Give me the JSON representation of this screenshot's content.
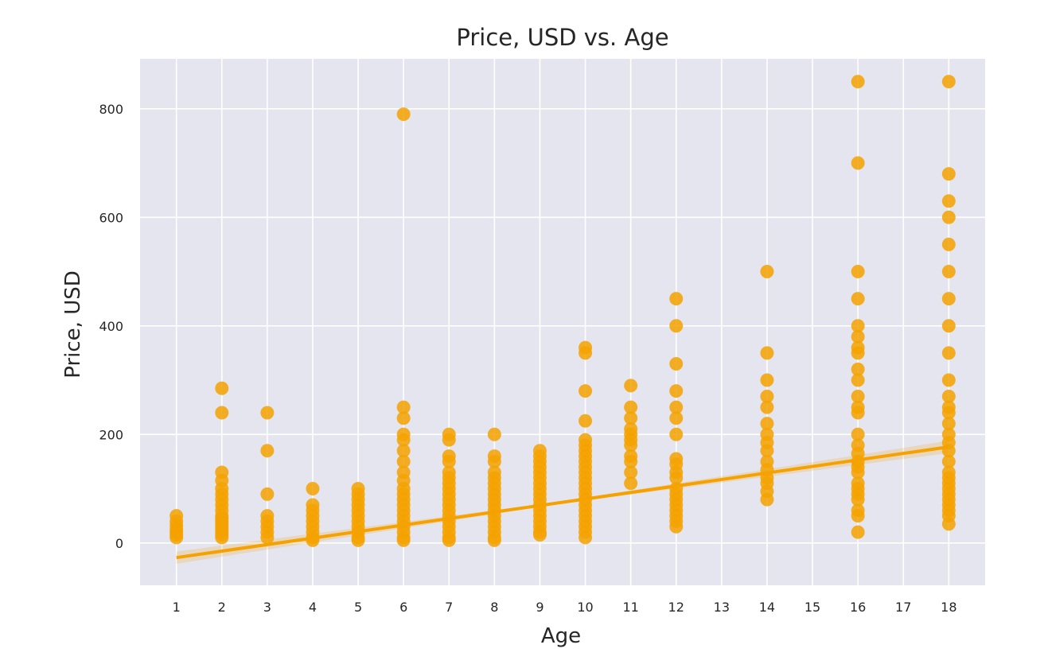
{
  "chart_data": {
    "type": "scatter",
    "title": "Price, USD vs. Age",
    "xlabel": "Age",
    "ylabel": "Price, USD",
    "x_ticks": [
      1,
      2,
      3,
      4,
      5,
      6,
      7,
      8,
      9,
      10,
      11,
      12,
      13,
      14,
      15,
      16,
      17,
      18
    ],
    "y_ticks": [
      0,
      200,
      400,
      600,
      800
    ],
    "xlim": [
      0.2,
      18.8
    ],
    "ylim": [
      -78,
      892
    ],
    "grid": true,
    "colors": {
      "background": "#e5e5ef",
      "grid": "#ffffff",
      "points": "#f5a200",
      "trend": "#f5a200"
    },
    "trend_line": {
      "x": [
        1,
        18
      ],
      "y": [
        -27,
        177
      ]
    },
    "points": [
      [
        1,
        50
      ],
      [
        1,
        40
      ],
      [
        1,
        32
      ],
      [
        1,
        25
      ],
      [
        1,
        20
      ],
      [
        1,
        15
      ],
      [
        1,
        10
      ],
      [
        2,
        285
      ],
      [
        2,
        240
      ],
      [
        2,
        130
      ],
      [
        2,
        115
      ],
      [
        2,
        100
      ],
      [
        2,
        90
      ],
      [
        2,
        80
      ],
      [
        2,
        70
      ],
      [
        2,
        60
      ],
      [
        2,
        50
      ],
      [
        2,
        45
      ],
      [
        2,
        40
      ],
      [
        2,
        35
      ],
      [
        2,
        30
      ],
      [
        2,
        25
      ],
      [
        2,
        20
      ],
      [
        2,
        15
      ],
      [
        2,
        10
      ],
      [
        3,
        240
      ],
      [
        3,
        170
      ],
      [
        3,
        90
      ],
      [
        3,
        50
      ],
      [
        3,
        40
      ],
      [
        3,
        30
      ],
      [
        3,
        20
      ],
      [
        3,
        10
      ],
      [
        4,
        100
      ],
      [
        4,
        70
      ],
      [
        4,
        60
      ],
      [
        4,
        50
      ],
      [
        4,
        40
      ],
      [
        4,
        30
      ],
      [
        4,
        20
      ],
      [
        4,
        10
      ],
      [
        4,
        5
      ],
      [
        5,
        100
      ],
      [
        5,
        90
      ],
      [
        5,
        80
      ],
      [
        5,
        70
      ],
      [
        5,
        60
      ],
      [
        5,
        50
      ],
      [
        5,
        40
      ],
      [
        5,
        30
      ],
      [
        5,
        20
      ],
      [
        5,
        10
      ],
      [
        5,
        5
      ],
      [
        6,
        790
      ],
      [
        6,
        250
      ],
      [
        6,
        230
      ],
      [
        6,
        200
      ],
      [
        6,
        190
      ],
      [
        6,
        170
      ],
      [
        6,
        150
      ],
      [
        6,
        130
      ],
      [
        6,
        115
      ],
      [
        6,
        100
      ],
      [
        6,
        90
      ],
      [
        6,
        80
      ],
      [
        6,
        70
      ],
      [
        6,
        60
      ],
      [
        6,
        50
      ],
      [
        6,
        40
      ],
      [
        6,
        30
      ],
      [
        6,
        20
      ],
      [
        6,
        10
      ],
      [
        6,
        5
      ],
      [
        7,
        200
      ],
      [
        7,
        190
      ],
      [
        7,
        160
      ],
      [
        7,
        150
      ],
      [
        7,
        130
      ],
      [
        7,
        120
      ],
      [
        7,
        110
      ],
      [
        7,
        100
      ],
      [
        7,
        90
      ],
      [
        7,
        80
      ],
      [
        7,
        70
      ],
      [
        7,
        60
      ],
      [
        7,
        50
      ],
      [
        7,
        40
      ],
      [
        7,
        30
      ],
      [
        7,
        20
      ],
      [
        7,
        10
      ],
      [
        7,
        5
      ],
      [
        8,
        200
      ],
      [
        8,
        160
      ],
      [
        8,
        150
      ],
      [
        8,
        130
      ],
      [
        8,
        120
      ],
      [
        8,
        110
      ],
      [
        8,
        100
      ],
      [
        8,
        90
      ],
      [
        8,
        80
      ],
      [
        8,
        70
      ],
      [
        8,
        60
      ],
      [
        8,
        50
      ],
      [
        8,
        40
      ],
      [
        8,
        30
      ],
      [
        8,
        20
      ],
      [
        8,
        10
      ],
      [
        8,
        5
      ],
      [
        9,
        170
      ],
      [
        9,
        160
      ],
      [
        9,
        150
      ],
      [
        9,
        140
      ],
      [
        9,
        130
      ],
      [
        9,
        120
      ],
      [
        9,
        110
      ],
      [
        9,
        100
      ],
      [
        9,
        90
      ],
      [
        9,
        80
      ],
      [
        9,
        70
      ],
      [
        9,
        60
      ],
      [
        9,
        50
      ],
      [
        9,
        40
      ],
      [
        9,
        30
      ],
      [
        9,
        20
      ],
      [
        9,
        15
      ],
      [
        10,
        360
      ],
      [
        10,
        350
      ],
      [
        10,
        280
      ],
      [
        10,
        225
      ],
      [
        10,
        190
      ],
      [
        10,
        180
      ],
      [
        10,
        170
      ],
      [
        10,
        160
      ],
      [
        10,
        150
      ],
      [
        10,
        140
      ],
      [
        10,
        130
      ],
      [
        10,
        120
      ],
      [
        10,
        110
      ],
      [
        10,
        100
      ],
      [
        10,
        90
      ],
      [
        10,
        80
      ],
      [
        10,
        70
      ],
      [
        10,
        60
      ],
      [
        10,
        50
      ],
      [
        10,
        40
      ],
      [
        10,
        30
      ],
      [
        10,
        20
      ],
      [
        10,
        10
      ],
      [
        11,
        290
      ],
      [
        11,
        250
      ],
      [
        11,
        230
      ],
      [
        11,
        210
      ],
      [
        11,
        200
      ],
      [
        11,
        190
      ],
      [
        11,
        180
      ],
      [
        11,
        160
      ],
      [
        11,
        150
      ],
      [
        11,
        130
      ],
      [
        11,
        110
      ],
      [
        12,
        450
      ],
      [
        12,
        400
      ],
      [
        12,
        330
      ],
      [
        12,
        280
      ],
      [
        12,
        250
      ],
      [
        12,
        230
      ],
      [
        12,
        200
      ],
      [
        12,
        155
      ],
      [
        12,
        145
      ],
      [
        12,
        130
      ],
      [
        12,
        120
      ],
      [
        12,
        100
      ],
      [
        12,
        90
      ],
      [
        12,
        80
      ],
      [
        12,
        70
      ],
      [
        12,
        60
      ],
      [
        12,
        50
      ],
      [
        12,
        40
      ],
      [
        12,
        30
      ],
      [
        14,
        500
      ],
      [
        14,
        350
      ],
      [
        14,
        300
      ],
      [
        14,
        270
      ],
      [
        14,
        250
      ],
      [
        14,
        220
      ],
      [
        14,
        200
      ],
      [
        14,
        185
      ],
      [
        14,
        170
      ],
      [
        14,
        150
      ],
      [
        14,
        135
      ],
      [
        14,
        120
      ],
      [
        14,
        110
      ],
      [
        14,
        95
      ],
      [
        14,
        80
      ],
      [
        16,
        850
      ],
      [
        16,
        700
      ],
      [
        16,
        500
      ],
      [
        16,
        450
      ],
      [
        16,
        400
      ],
      [
        16,
        380
      ],
      [
        16,
        360
      ],
      [
        16,
        350
      ],
      [
        16,
        320
      ],
      [
        16,
        300
      ],
      [
        16,
        270
      ],
      [
        16,
        250
      ],
      [
        16,
        240
      ],
      [
        16,
        200
      ],
      [
        16,
        180
      ],
      [
        16,
        165
      ],
      [
        16,
        150
      ],
      [
        16,
        140
      ],
      [
        16,
        130
      ],
      [
        16,
        110
      ],
      [
        16,
        100
      ],
      [
        16,
        90
      ],
      [
        16,
        80
      ],
      [
        16,
        60
      ],
      [
        16,
        50
      ],
      [
        16,
        20
      ],
      [
        18,
        850
      ],
      [
        18,
        680
      ],
      [
        18,
        630
      ],
      [
        18,
        600
      ],
      [
        18,
        550
      ],
      [
        18,
        500
      ],
      [
        18,
        450
      ],
      [
        18,
        400
      ],
      [
        18,
        350
      ],
      [
        18,
        300
      ],
      [
        18,
        270
      ],
      [
        18,
        250
      ],
      [
        18,
        240
      ],
      [
        18,
        220
      ],
      [
        18,
        200
      ],
      [
        18,
        185
      ],
      [
        18,
        170
      ],
      [
        18,
        150
      ],
      [
        18,
        130
      ],
      [
        18,
        120
      ],
      [
        18,
        110
      ],
      [
        18,
        100
      ],
      [
        18,
        90
      ],
      [
        18,
        80
      ],
      [
        18,
        70
      ],
      [
        18,
        60
      ],
      [
        18,
        50
      ],
      [
        18,
        35
      ]
    ]
  }
}
